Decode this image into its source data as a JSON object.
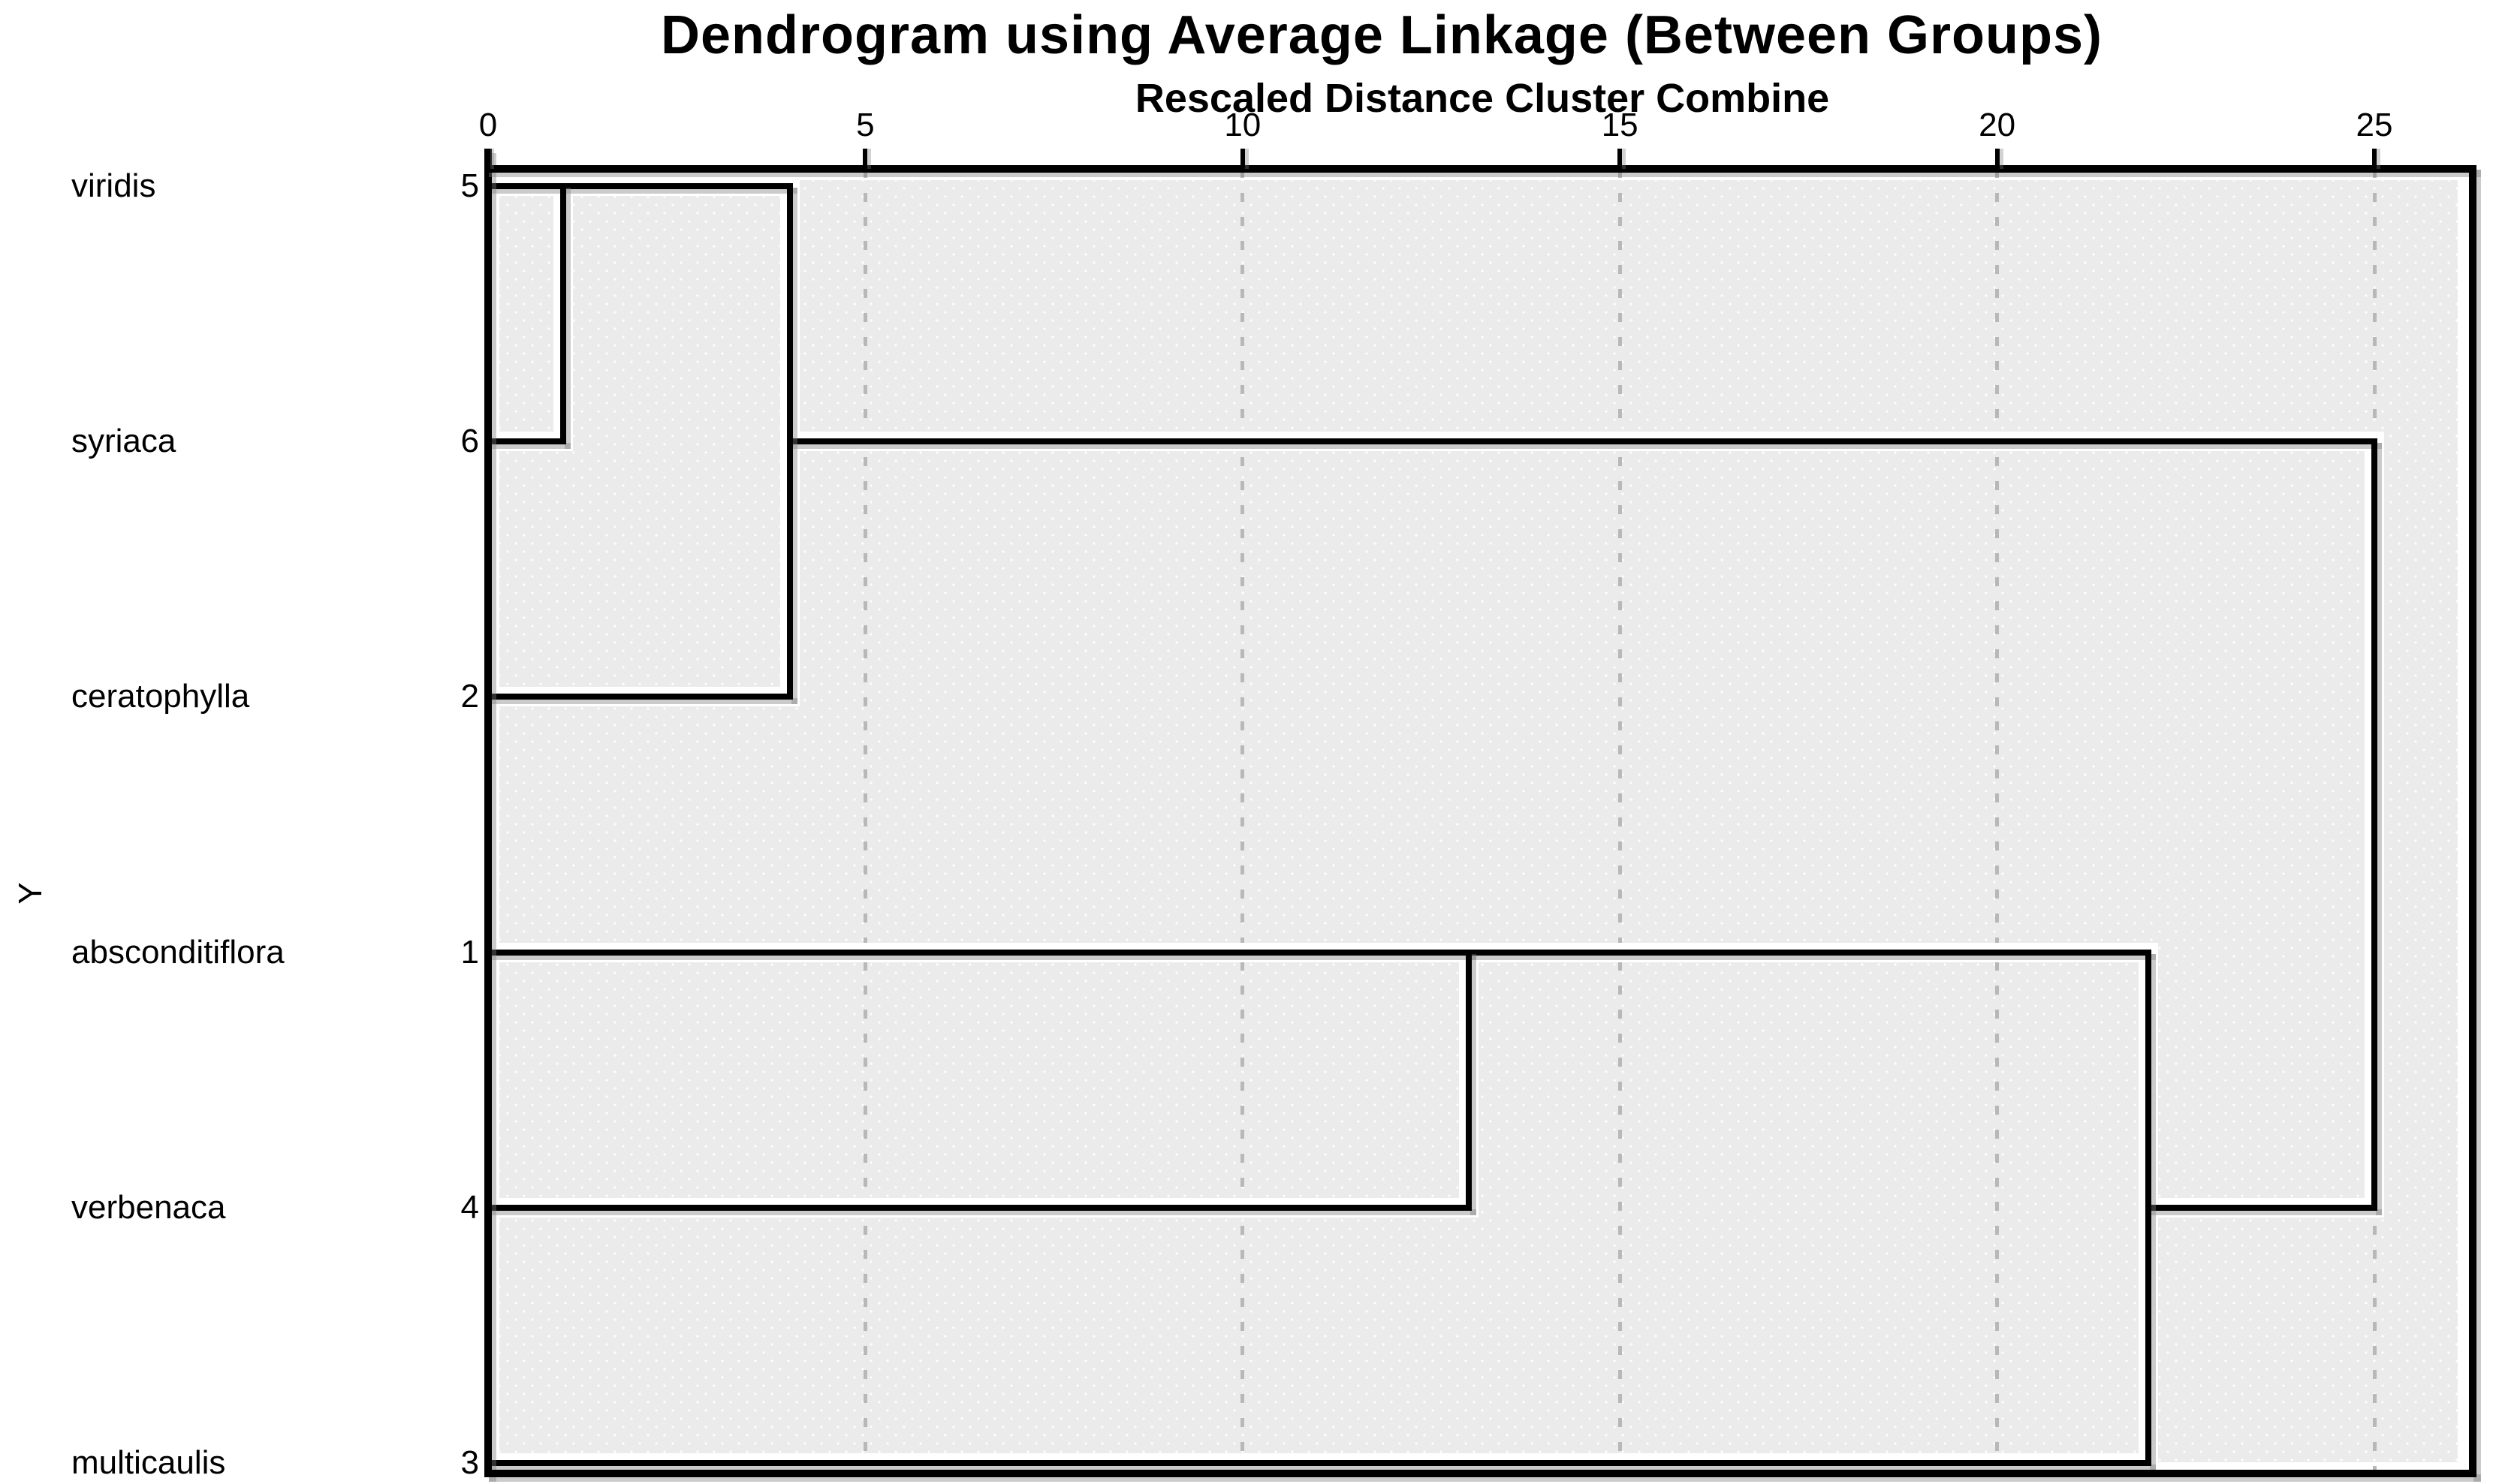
{
  "header": {
    "title": "Dendrogram using Average Linkage (Between Groups)",
    "subtitle": "Rescaled Distance Cluster Combine"
  },
  "y_axis": {
    "label": "Y"
  },
  "x_axis": {
    "tick_labels": [
      "0",
      "5",
      "10",
      "15",
      "20",
      "25"
    ]
  },
  "rows": [
    {
      "label": "viridis",
      "case_number": "5"
    },
    {
      "label": "syriaca",
      "case_number": "6"
    },
    {
      "label": "ceratophylla",
      "case_number": "2"
    },
    {
      "label": "absconditiflora",
      "case_number": "1"
    },
    {
      "label": "verbenaca",
      "case_number": "4"
    },
    {
      "label": "multicaulis",
      "case_number": "3"
    }
  ],
  "chart_data": {
    "type": "dendrogram",
    "orientation": "horizontal",
    "title": "Dendrogram using Average Linkage (Between Groups)",
    "xlabel": "Rescaled Distance Cluster Combine",
    "ylabel": "Y",
    "xlim": [
      0,
      25
    ],
    "x_ticks": [
      0,
      5,
      10,
      15,
      20,
      25
    ],
    "grid": "dashed-vertical-at-ticks",
    "leaves_top_to_bottom": [
      {
        "name": "viridis",
        "case": 5
      },
      {
        "name": "syriaca",
        "case": 6
      },
      {
        "name": "ceratophylla",
        "case": 2
      },
      {
        "name": "absconditiflora",
        "case": 1
      },
      {
        "name": "verbenaca",
        "case": 4
      },
      {
        "name": "multicaulis",
        "case": 3
      }
    ],
    "merges": [
      {
        "joins": [
          "viridis (5)",
          "syriaca (6)"
        ],
        "rescaled_distance": 1
      },
      {
        "joins": [
          "cluster(5,6)",
          "ceratophylla (2)"
        ],
        "rescaled_distance": 4
      },
      {
        "joins": [
          "absconditiflora (1)",
          "verbenaca (4)"
        ],
        "rescaled_distance": 13
      },
      {
        "joins": [
          "cluster(1,4)",
          "multicaulis (3)"
        ],
        "rescaled_distance": 22
      },
      {
        "joins": [
          "cluster(5,6,2)",
          "cluster(1,4,3)"
        ],
        "rescaled_distance": 25
      }
    ],
    "segments": {
      "horizontal": [
        {
          "row": 0,
          "d1": 0,
          "d2": 4
        },
        {
          "row": 1,
          "d1": 0,
          "d2": 1
        },
        {
          "row": 2,
          "d1": 0,
          "d2": 4
        },
        {
          "row": 1,
          "d1": 4,
          "d2": 25
        },
        {
          "row": 3,
          "d1": 0,
          "d2": 13
        },
        {
          "row": 4,
          "d1": 0,
          "d2": 13
        },
        {
          "row": 3,
          "d1": 13,
          "d2": 22
        },
        {
          "row": 5,
          "d1": 0,
          "d2": 22
        },
        {
          "row": 4,
          "d1": 22,
          "d2": 25
        }
      ],
      "vertical": [
        {
          "d": 1,
          "row1": 0,
          "row2": 1
        },
        {
          "d": 4,
          "row1": 0,
          "row2": 2
        },
        {
          "d": 13,
          "row1": 3,
          "row2": 4
        },
        {
          "d": 22,
          "row1": 3,
          "row2": 5
        },
        {
          "d": 25,
          "row1": 1,
          "row2": 4
        }
      ]
    },
    "colors": {
      "line": "#000000",
      "line_shadow": "#7d7d7d",
      "gridline": "#b8b8b8",
      "plot_background": "#ebebeb",
      "pattern_dot": "#fdfdfd",
      "text": "#000000",
      "page_background": "#ffffff"
    }
  }
}
